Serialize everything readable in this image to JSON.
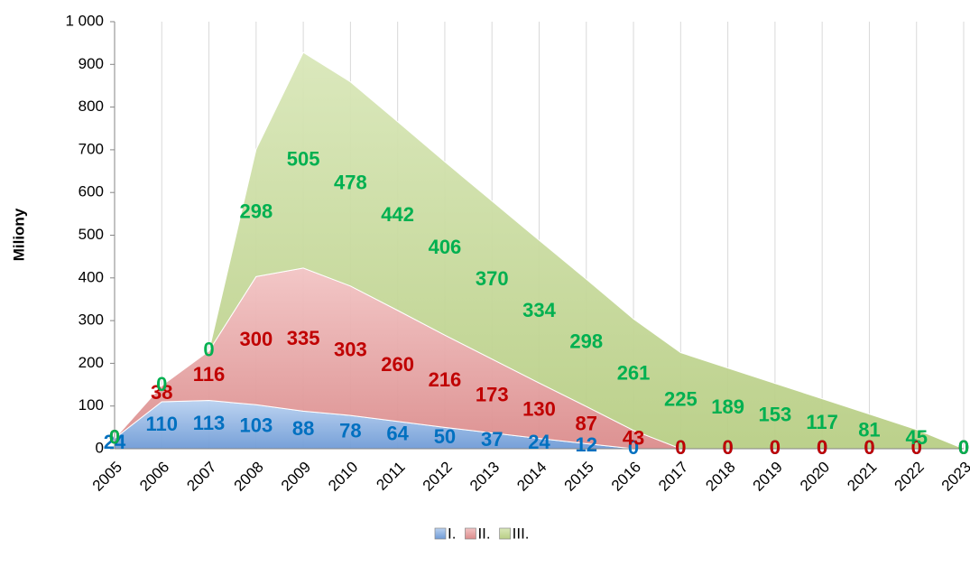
{
  "chart_data": {
    "type": "area",
    "stacked": true,
    "y_label": "Miliony",
    "categories": [
      "2005",
      "2006",
      "2007",
      "2008",
      "2009",
      "2010",
      "2011",
      "2012",
      "2013",
      "2014",
      "2015",
      "2016",
      "2017",
      "2018",
      "2019",
      "2020",
      "2021",
      "2022",
      "2023"
    ],
    "series": [
      {
        "name": "I.",
        "color": "#8eb4e3",
        "label_color": "#0070c0",
        "values": [
          24,
          110,
          113,
          103,
          88,
          78,
          64,
          50,
          37,
          24,
          12,
          0,
          0,
          0,
          0,
          0,
          0,
          0,
          0
        ]
      },
      {
        "name": "II.",
        "color": "#e6a3a3",
        "label_color": "#c00000",
        "values": [
          0,
          38,
          116,
          300,
          335,
          303,
          260,
          216,
          173,
          130,
          87,
          43,
          0,
          0,
          0,
          0,
          0,
          0,
          0
        ]
      },
      {
        "name": "III.",
        "color": "#c8da9e",
        "label_color": "#00b050",
        "values": [
          0,
          0,
          0,
          298,
          505,
          478,
          442,
          406,
          370,
          334,
          298,
          261,
          225,
          189,
          153,
          117,
          81,
          45,
          0
        ]
      }
    ],
    "ylim": [
      0,
      1000
    ],
    "yticks": [
      0,
      100,
      200,
      300,
      400,
      500,
      600,
      700,
      800,
      900,
      {
        "value": 1000,
        "label": "1 000"
      }
    ],
    "grid": "vertical",
    "legend": "bottom"
  }
}
